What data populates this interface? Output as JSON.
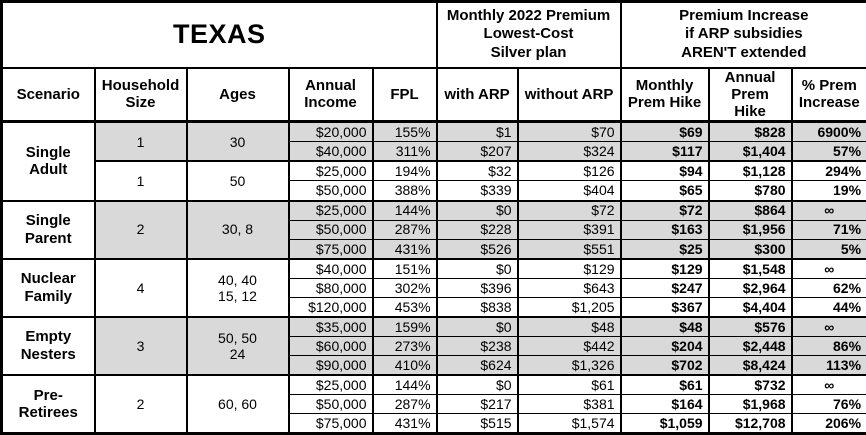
{
  "title": "TEXAS",
  "section_headers": {
    "premium": "Monthly 2022 Premium\nLowest-Cost\nSilver plan",
    "increase": "Premium Increase\nif ARP subsidies\nAREN'T extended"
  },
  "columns": [
    "Scenario",
    "Household\nSize",
    "Ages",
    "Annual\nIncome",
    "FPL",
    "with ARP",
    "without ARP",
    "Monthly\nPrem Hike",
    "Annual\nPrem Hike",
    "% Prem\nIncrease"
  ],
  "infinity_symbol": "∞",
  "colors": {
    "shaded_row": "#d9d9d9",
    "border": "#000000",
    "text": "#000000",
    "background": "#ffffff"
  },
  "groups": [
    {
      "scenario": "Single\nAdult",
      "subgroups": [
        {
          "household_size": "1",
          "ages": "30",
          "shaded": true,
          "rows": [
            {
              "income": "$20,000",
              "fpl": "155%",
              "with_arp": "$1",
              "without_arp": "$70",
              "monthly_hike": "$69",
              "annual_hike": "$828",
              "pct_increase": "6900%"
            },
            {
              "income": "$40,000",
              "fpl": "311%",
              "with_arp": "$207",
              "without_arp": "$324",
              "monthly_hike": "$117",
              "annual_hike": "$1,404",
              "pct_increase": "57%"
            }
          ]
        },
        {
          "household_size": "1",
          "ages": "50",
          "shaded": false,
          "rows": [
            {
              "income": "$25,000",
              "fpl": "194%",
              "with_arp": "$32",
              "without_arp": "$126",
              "monthly_hike": "$94",
              "annual_hike": "$1,128",
              "pct_increase": "294%"
            },
            {
              "income": "$50,000",
              "fpl": "388%",
              "with_arp": "$339",
              "without_arp": "$404",
              "monthly_hike": "$65",
              "annual_hike": "$780",
              "pct_increase": "19%"
            }
          ]
        }
      ]
    },
    {
      "scenario": "Single\nParent",
      "subgroups": [
        {
          "household_size": "2",
          "ages": "30, 8",
          "shaded": true,
          "rows": [
            {
              "income": "$25,000",
              "fpl": "144%",
              "with_arp": "$0",
              "without_arp": "$72",
              "monthly_hike": "$72",
              "annual_hike": "$864",
              "pct_increase": "∞"
            },
            {
              "income": "$50,000",
              "fpl": "287%",
              "with_arp": "$228",
              "without_arp": "$391",
              "monthly_hike": "$163",
              "annual_hike": "$1,956",
              "pct_increase": "71%"
            },
            {
              "income": "$75,000",
              "fpl": "431%",
              "with_arp": "$526",
              "without_arp": "$551",
              "monthly_hike": "$25",
              "annual_hike": "$300",
              "pct_increase": "5%"
            }
          ]
        }
      ]
    },
    {
      "scenario": "Nuclear\nFamily",
      "subgroups": [
        {
          "household_size": "4",
          "ages": "40, 40\n15, 12",
          "shaded": false,
          "rows": [
            {
              "income": "$40,000",
              "fpl": "151%",
              "with_arp": "$0",
              "without_arp": "$129",
              "monthly_hike": "$129",
              "annual_hike": "$1,548",
              "pct_increase": "∞"
            },
            {
              "income": "$80,000",
              "fpl": "302%",
              "with_arp": "$396",
              "without_arp": "$643",
              "monthly_hike": "$247",
              "annual_hike": "$2,964",
              "pct_increase": "62%"
            },
            {
              "income": "$120,000",
              "fpl": "453%",
              "with_arp": "$838",
              "without_arp": "$1,205",
              "monthly_hike": "$367",
              "annual_hike": "$4,404",
              "pct_increase": "44%"
            }
          ]
        }
      ]
    },
    {
      "scenario": "Empty\nNesters",
      "subgroups": [
        {
          "household_size": "3",
          "ages": "50, 50\n24",
          "shaded": true,
          "rows": [
            {
              "income": "$35,000",
              "fpl": "159%",
              "with_arp": "$0",
              "without_arp": "$48",
              "monthly_hike": "$48",
              "annual_hike": "$576",
              "pct_increase": "∞"
            },
            {
              "income": "$60,000",
              "fpl": "273%",
              "with_arp": "$238",
              "without_arp": "$442",
              "monthly_hike": "$204",
              "annual_hike": "$2,448",
              "pct_increase": "86%"
            },
            {
              "income": "$90,000",
              "fpl": "410%",
              "with_arp": "$624",
              "without_arp": "$1,326",
              "monthly_hike": "$702",
              "annual_hike": "$8,424",
              "pct_increase": "113%"
            }
          ]
        }
      ]
    },
    {
      "scenario": "Pre-\nRetirees",
      "subgroups": [
        {
          "household_size": "2",
          "ages": "60, 60",
          "shaded": false,
          "rows": [
            {
              "income": "$25,000",
              "fpl": "144%",
              "with_arp": "$0",
              "without_arp": "$61",
              "monthly_hike": "$61",
              "annual_hike": "$732",
              "pct_increase": "∞"
            },
            {
              "income": "$50,000",
              "fpl": "287%",
              "with_arp": "$217",
              "without_arp": "$381",
              "monthly_hike": "$164",
              "annual_hike": "$1,968",
              "pct_increase": "76%"
            },
            {
              "income": "$75,000",
              "fpl": "431%",
              "with_arp": "$515",
              "without_arp": "$1,574",
              "monthly_hike": "$1,059",
              "annual_hike": "$12,708",
              "pct_increase": "206%"
            }
          ]
        }
      ]
    }
  ],
  "chart_data": {
    "type": "table",
    "title": "TEXAS",
    "column_groups": [
      "Monthly 2022 Premium Lowest-Cost Silver plan",
      "Premium Increase if ARP subsidies AREN'T extended"
    ],
    "columns": [
      "Scenario",
      "Household Size",
      "Ages",
      "Annual Income",
      "FPL",
      "with ARP",
      "without ARP",
      "Monthly Prem Hike",
      "Annual Prem Hike",
      "% Prem Increase"
    ],
    "rows": [
      [
        "Single Adult",
        "1",
        "30",
        "$20,000",
        "155%",
        "$1",
        "$70",
        "$69",
        "$828",
        "6900%"
      ],
      [
        "Single Adult",
        "1",
        "30",
        "$40,000",
        "311%",
        "$207",
        "$324",
        "$117",
        "$1,404",
        "57%"
      ],
      [
        "Single Adult",
        "1",
        "50",
        "$25,000",
        "194%",
        "$32",
        "$126",
        "$94",
        "$1,128",
        "294%"
      ],
      [
        "Single Adult",
        "1",
        "50",
        "$50,000",
        "388%",
        "$339",
        "$404",
        "$65",
        "$780",
        "19%"
      ],
      [
        "Single Parent",
        "2",
        "30, 8",
        "$25,000",
        "144%",
        "$0",
        "$72",
        "$72",
        "$864",
        "∞"
      ],
      [
        "Single Parent",
        "2",
        "30, 8",
        "$50,000",
        "287%",
        "$228",
        "$391",
        "$163",
        "$1,956",
        "71%"
      ],
      [
        "Single Parent",
        "2",
        "30, 8",
        "$75,000",
        "431%",
        "$526",
        "$551",
        "$25",
        "$300",
        "5%"
      ],
      [
        "Nuclear Family",
        "4",
        "40, 40, 15, 12",
        "$40,000",
        "151%",
        "$0",
        "$129",
        "$129",
        "$1,548",
        "∞"
      ],
      [
        "Nuclear Family",
        "4",
        "40, 40, 15, 12",
        "$80,000",
        "302%",
        "$396",
        "$643",
        "$247",
        "$2,964",
        "62%"
      ],
      [
        "Nuclear Family",
        "4",
        "40, 40, 15, 12",
        "$120,000",
        "453%",
        "$838",
        "$1,205",
        "$367",
        "$4,404",
        "44%"
      ],
      [
        "Empty Nesters",
        "3",
        "50, 50, 24",
        "$35,000",
        "159%",
        "$0",
        "$48",
        "$48",
        "$576",
        "∞"
      ],
      [
        "Empty Nesters",
        "3",
        "50, 50, 24",
        "$60,000",
        "273%",
        "$238",
        "$442",
        "$204",
        "$2,448",
        "86%"
      ],
      [
        "Empty Nesters",
        "3",
        "50, 50, 24",
        "$90,000",
        "410%",
        "$624",
        "$1,326",
        "$702",
        "$8,424",
        "113%"
      ],
      [
        "Pre-Retirees",
        "2",
        "60, 60",
        "$25,000",
        "144%",
        "$0",
        "$61",
        "$61",
        "$732",
        "∞"
      ],
      [
        "Pre-Retirees",
        "2",
        "60, 60",
        "$50,000",
        "287%",
        "$217",
        "$381",
        "$164",
        "$1,968",
        "76%"
      ],
      [
        "Pre-Retirees",
        "2",
        "60, 60",
        "$75,000",
        "431%",
        "$515",
        "$1,574",
        "$1,059",
        "$12,708",
        "206%"
      ]
    ]
  }
}
